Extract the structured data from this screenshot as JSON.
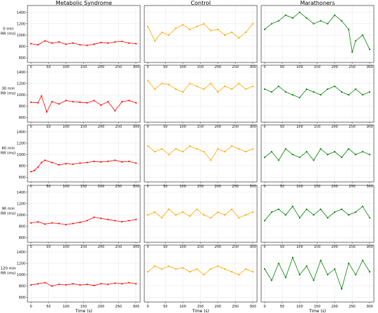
{
  "chart_data": {
    "type": "line",
    "columns": [
      "Metabolic Syndrome",
      "Control",
      "Marathoners"
    ],
    "rows": [
      {
        "time": "0 min",
        "ylabel": "RR (ms)"
      },
      {
        "time": "30 min",
        "ylabel": "RR (ms)"
      },
      {
        "time": "60 min",
        "ylabel": "RR (ms)"
      },
      {
        "time": "90 min",
        "ylabel": "RR (ms)"
      },
      {
        "time": "120 min",
        "ylabel": "RR (ms)"
      }
    ],
    "xlabel": "Time (s)",
    "xlim": [
      -10,
      312
    ],
    "xticks": [
      0,
      50,
      100,
      150,
      200,
      250,
      300
    ],
    "ylim": [
      520,
      1520
    ],
    "yticks": [
      600,
      800,
      1000,
      1200,
      1400
    ],
    "grid": true,
    "colors": {
      "Metabolic Syndrome": "#ff0000",
      "Control": "#ffa500",
      "Marathoners": "#008000"
    },
    "series": [
      [
        {
          "x": [
            0,
            20,
            40,
            60,
            80,
            100,
            120,
            140,
            160,
            180,
            200,
            220,
            240,
            260,
            280,
            300
          ],
          "y": [
            850,
            830,
            900,
            860,
            880,
            840,
            860,
            830,
            820,
            840,
            870,
            860,
            880,
            890,
            860,
            850
          ]
        },
        {
          "x": [
            0,
            20,
            30,
            45,
            60,
            80,
            100,
            120,
            140,
            160,
            180,
            200,
            220,
            240,
            260,
            280,
            300
          ],
          "y": [
            870,
            860,
            980,
            700,
            880,
            840,
            900,
            880,
            870,
            860,
            900,
            820,
            880,
            720,
            880,
            900,
            860
          ]
        },
        {
          "x": [
            0,
            10,
            20,
            30,
            40,
            60,
            80,
            100,
            120,
            140,
            160,
            180,
            200,
            220,
            240,
            260,
            280,
            300
          ],
          "y": [
            700,
            720,
            780,
            860,
            900,
            860,
            820,
            840,
            830,
            850,
            860,
            880,
            870,
            880,
            900,
            870,
            880,
            850
          ]
        },
        {
          "x": [
            0,
            20,
            40,
            60,
            80,
            100,
            120,
            140,
            160,
            180,
            200,
            220,
            240,
            260,
            280,
            300
          ],
          "y": [
            860,
            880,
            840,
            860,
            850,
            830,
            850,
            870,
            900,
            960,
            940,
            920,
            900,
            880,
            900,
            920
          ]
        },
        {
          "x": [
            0,
            20,
            40,
            60,
            80,
            100,
            120,
            140,
            160,
            180,
            200,
            220,
            240,
            260,
            280,
            300
          ],
          "y": [
            820,
            840,
            860,
            800,
            830,
            820,
            840,
            820,
            830,
            810,
            840,
            830,
            850,
            840,
            860,
            840
          ]
        }
      ],
      [
        {
          "x": [
            0,
            20,
            40,
            60,
            80,
            100,
            120,
            140,
            160,
            180,
            200,
            220,
            240,
            260,
            280,
            300
          ],
          "y": [
            1150,
            900,
            1050,
            1000,
            1120,
            1180,
            1100,
            1150,
            1200,
            1080,
            1100,
            1000,
            1050,
            950,
            1050,
            1200
          ]
        },
        {
          "x": [
            0,
            20,
            40,
            60,
            80,
            100,
            120,
            140,
            160,
            180,
            200,
            220,
            240,
            260,
            280,
            300
          ],
          "y": [
            1250,
            1100,
            1200,
            1180,
            1100,
            1050,
            1200,
            1150,
            1100,
            1200,
            1050,
            1150,
            1100,
            1200,
            1100,
            1150
          ]
        },
        {
          "x": [
            0,
            20,
            40,
            60,
            80,
            100,
            120,
            140,
            160,
            180,
            200,
            220,
            240,
            260,
            280,
            300
          ],
          "y": [
            1150,
            1050,
            1100,
            1000,
            1100,
            1050,
            1150,
            1100,
            1050,
            900,
            1100,
            1050,
            1150,
            1100,
            1050,
            1100
          ]
        },
        {
          "x": [
            0,
            20,
            40,
            60,
            80,
            100,
            120,
            140,
            160,
            180,
            200,
            220,
            240,
            260,
            280,
            300
          ],
          "y": [
            1000,
            1050,
            950,
            1100,
            1000,
            1050,
            980,
            1100,
            1000,
            950,
            1050,
            1000,
            1100,
            950,
            1000,
            1050
          ]
        },
        {
          "x": [
            0,
            20,
            40,
            60,
            80,
            100,
            120,
            140,
            160,
            180,
            200,
            220,
            240,
            260,
            280,
            300
          ],
          "y": [
            1050,
            1150,
            1100,
            1150,
            1100,
            1120,
            1050,
            1100,
            1000,
            1100,
            1150,
            1100,
            1050,
            1000,
            1100,
            1050
          ]
        }
      ],
      [
        {
          "x": [
            0,
            20,
            40,
            60,
            80,
            100,
            120,
            140,
            160,
            180,
            200,
            220,
            240,
            250,
            260,
            280,
            300
          ],
          "y": [
            1100,
            1200,
            1250,
            1350,
            1300,
            1400,
            1300,
            1200,
            1250,
            1200,
            1350,
            1250,
            1100,
            700,
            900,
            1000,
            750
          ]
        },
        {
          "x": [
            0,
            20,
            40,
            60,
            80,
            100,
            120,
            140,
            160,
            180,
            200,
            220,
            240,
            260,
            280,
            300
          ],
          "y": [
            1100,
            1050,
            1150,
            1050,
            1000,
            950,
            1100,
            1050,
            1000,
            1100,
            1150,
            1050,
            1000,
            1100,
            1000,
            1050
          ]
        },
        {
          "x": [
            0,
            20,
            40,
            60,
            80,
            100,
            120,
            140,
            160,
            180,
            200,
            220,
            240,
            260,
            280,
            300
          ],
          "y": [
            950,
            1050,
            900,
            1100,
            1000,
            950,
            1050,
            900,
            1100,
            1000,
            1050,
            950,
            1100,
            1000,
            1050,
            1000
          ]
        },
        {
          "x": [
            0,
            20,
            40,
            60,
            80,
            100,
            120,
            140,
            160,
            180,
            200,
            220,
            240,
            260,
            280,
            300
          ],
          "y": [
            900,
            1050,
            1100,
            1000,
            1150,
            950,
            1100,
            1000,
            1100,
            950,
            1050,
            1100,
            1000,
            1050,
            1150,
            950
          ]
        },
        {
          "x": [
            0,
            20,
            40,
            60,
            80,
            100,
            120,
            140,
            160,
            180,
            200,
            220,
            240,
            260,
            280,
            300
          ],
          "y": [
            1100,
            900,
            1200,
            950,
            1300,
            1000,
            1150,
            900,
            1250,
            1000,
            1100,
            750,
            1200,
            1000,
            1250,
            1050
          ]
        }
      ]
    ]
  }
}
